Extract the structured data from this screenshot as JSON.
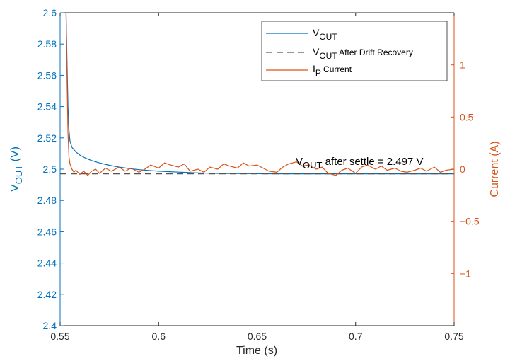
{
  "chart_data": {
    "type": "line",
    "xlabel": "Time (s)",
    "x_ticks": [
      "0.55",
      "0.6",
      "0.65",
      "0.7",
      "0.75"
    ],
    "xlim": [
      0.55,
      0.75
    ],
    "left_axis": {
      "label_main": "V",
      "label_sub": "OUT",
      "label_unit": " (V)",
      "color": "#0072BD",
      "ylim": [
        2.4,
        2.6
      ],
      "ticks": [
        "2.4",
        "2.42",
        "2.44",
        "2.46",
        "2.48",
        "2.5",
        "2.52",
        "2.54",
        "2.56",
        "2.58",
        "2.6"
      ]
    },
    "right_axis": {
      "label": "Current (A)",
      "color": "#D95319",
      "ylim": [
        -1.5,
        1.5
      ],
      "ticks": [
        "-1",
        "-0.5",
        "0",
        "0.5",
        "1"
      ],
      "tick_values": [
        -1,
        -0.5,
        0,
        0.5,
        1
      ]
    },
    "legend_position": "top-right",
    "series": [
      {
        "legend_main": "V",
        "legend_sub": "OUT",
        "legend_rest": "",
        "axis": "left",
        "color": "#0072BD",
        "style": "solid",
        "x": [
          0.553,
          0.5535,
          0.554,
          0.5545,
          0.555,
          0.556,
          0.558,
          0.56,
          0.563,
          0.566,
          0.57,
          0.575,
          0.58,
          0.585,
          0.59,
          0.595,
          0.6,
          0.61,
          0.62,
          0.63,
          0.65,
          0.67,
          0.7,
          0.73,
          0.75
        ],
        "y": [
          2.6,
          2.57,
          2.54,
          2.525,
          2.518,
          2.514,
          2.511,
          2.509,
          2.507,
          2.5055,
          2.504,
          2.5025,
          2.5013,
          2.5004,
          2.4997,
          2.4992,
          2.4987,
          2.4981,
          2.4976,
          2.4973,
          2.4971,
          2.497,
          2.497,
          2.497,
          2.497
        ]
      },
      {
        "legend_main": "V",
        "legend_sub": "OUT",
        "legend_rest": " After Drift Recovery",
        "axis": "left",
        "color": "#555555",
        "style": "dashed",
        "x": [
          0.55,
          0.75
        ],
        "y": [
          2.497,
          2.497
        ]
      },
      {
        "legend_main": "I",
        "legend_sub": "P",
        "legend_rest": " Current",
        "axis": "right",
        "color": "#D95319",
        "style": "solid",
        "x": [
          0.553,
          0.5535,
          0.554,
          0.5545,
          0.555,
          0.556,
          0.557,
          0.558,
          0.56,
          0.562,
          0.564,
          0.566,
          0.568,
          0.57,
          0.573,
          0.576,
          0.58,
          0.583,
          0.586,
          0.59,
          0.593,
          0.596,
          0.6,
          0.603,
          0.606,
          0.61,
          0.613,
          0.616,
          0.62,
          0.623,
          0.626,
          0.63,
          0.633,
          0.636,
          0.64,
          0.643,
          0.646,
          0.65,
          0.653,
          0.656,
          0.66,
          0.663,
          0.666,
          0.67,
          0.673,
          0.676,
          0.68,
          0.683,
          0.686,
          0.69,
          0.693,
          0.696,
          0.7,
          0.703,
          0.706,
          0.71,
          0.713,
          0.716,
          0.72,
          0.723,
          0.726,
          0.73,
          0.733,
          0.736,
          0.74,
          0.743,
          0.746,
          0.75
        ],
        "y": [
          1.5,
          0.9,
          0.35,
          0.12,
          0.05,
          0.0,
          -0.03,
          -0.01,
          -0.05,
          -0.02,
          -0.06,
          -0.02,
          0.0,
          -0.04,
          0.01,
          -0.02,
          0.02,
          -0.02,
          0.01,
          -0.03,
          0.0,
          0.04,
          0.01,
          0.06,
          0.04,
          0.02,
          0.05,
          -0.02,
          0.0,
          -0.03,
          0.02,
          0.0,
          0.05,
          0.03,
          0.01,
          0.06,
          0.03,
          0.04,
          0.01,
          -0.02,
          -0.03,
          0.02,
          0.05,
          0.07,
          0.03,
          0.04,
          0.0,
          0.02,
          -0.04,
          -0.06,
          -0.01,
          0.01,
          -0.04,
          0.02,
          0.04,
          0.0,
          0.03,
          -0.01,
          0.01,
          -0.02,
          -0.03,
          -0.01,
          0.01,
          -0.02,
          0.02,
          -0.03,
          -0.01,
          0.0
        ]
      }
    ],
    "annotation": {
      "main": "V",
      "sub": "OUT",
      "rest": " after settle = 2.497 V",
      "x": 0.67,
      "y": 2.5
    }
  }
}
